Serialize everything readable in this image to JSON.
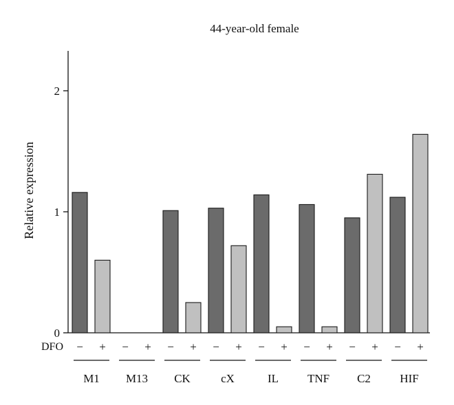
{
  "chart_data": {
    "type": "bar",
    "title": "44-year-old female",
    "ylabel": "Relative expression",
    "xlabel": "",
    "ylim": [
      0,
      2.3
    ],
    "yticks": [
      0,
      1,
      2
    ],
    "treatment_label": "DFO",
    "treatment_signs": [
      "−",
      "+"
    ],
    "categories": [
      "M1",
      "M13",
      "CK",
      "cX",
      "IL",
      "TNF",
      "C2",
      "HIF"
    ],
    "series": [
      {
        "values": [
          1.16,
          0,
          1.01,
          1.03,
          1.14,
          1.06,
          0.95,
          1.12
        ]
      },
      {
        "values": [
          0.6,
          0,
          0.25,
          0.72,
          0.05,
          0.05,
          1.31,
          1.64
        ]
      }
    ],
    "colors": {
      "minus": "#6b6b6b",
      "plus": "#c0c0c0",
      "stroke": "#1a1a1a"
    },
    "grid": false,
    "legend": "none"
  }
}
